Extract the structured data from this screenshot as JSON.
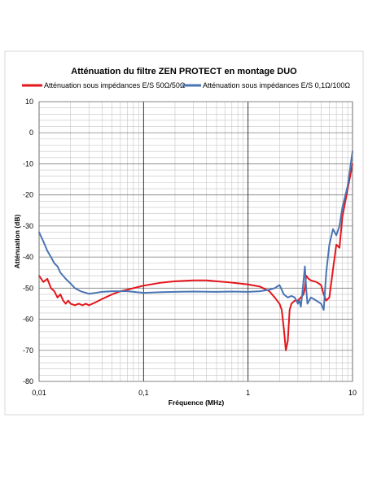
{
  "chart_data": {
    "type": "line",
    "title": "Atténuation du filtre ZEN PROTECT en montage DUO",
    "xlabel": "Fréquence (MHz)",
    "ylabel": "Atténuation (dB)",
    "x_scale": "log",
    "xlim": [
      0.01,
      10
    ],
    "ylim": [
      -80,
      10
    ],
    "x_ticks": [
      0.01,
      0.1,
      1,
      10
    ],
    "x_tick_labels": [
      "0,01",
      "0,1",
      "1",
      "10"
    ],
    "y_ticks": [
      10,
      0,
      -10,
      -20,
      -30,
      -40,
      -50,
      -60,
      -70,
      -80
    ],
    "y_tick_labels": [
      "10",
      "0",
      "-10",
      "-20",
      "-30",
      "-40",
      "-50",
      "-60",
      "-70",
      "-80"
    ],
    "grid": true,
    "legend_position": "top",
    "series": [
      {
        "name": "Atténuation sous impédances E/S 50Ω/50Ω",
        "color": "#e3161b",
        "x": [
          0.01,
          0.011,
          0.012,
          0.013,
          0.014,
          0.015,
          0.016,
          0.017,
          0.018,
          0.019,
          0.02,
          0.022,
          0.024,
          0.026,
          0.028,
          0.03,
          0.035,
          0.04,
          0.05,
          0.06,
          0.07,
          0.08,
          0.1,
          0.15,
          0.2,
          0.3,
          0.4,
          0.5,
          0.7,
          1.0,
          1.3,
          1.6,
          1.8,
          2.0,
          2.1,
          2.2,
          2.3,
          2.4,
          2.5,
          2.6,
          2.8,
          3.0,
          3.2,
          3.4,
          3.5,
          3.6,
          3.8,
          4.0,
          4.5,
          5.0,
          5.3,
          5.6,
          6.0,
          6.5,
          7.0,
          7.5,
          8.0,
          9.0,
          10.0
        ],
        "values": [
          -46,
          -48,
          -47,
          -50,
          -51,
          -53,
          -52,
          -54,
          -55,
          -54,
          -55,
          -55.5,
          -55,
          -55.5,
          -55,
          -55.5,
          -54.5,
          -53.5,
          -52,
          -51,
          -50.5,
          -50,
          -49.2,
          -48.2,
          -47.8,
          -47.5,
          -47.5,
          -47.8,
          -48.2,
          -48.8,
          -49.5,
          -51,
          -53,
          -55,
          -57,
          -63,
          -70,
          -67,
          -57,
          -55,
          -54,
          -54,
          -53,
          -52,
          -50,
          -46,
          -47,
          -47.5,
          -48,
          -49,
          -52,
          -54,
          -53,
          -44,
          -36,
          -37,
          -27,
          -18,
          -10
        ]
      },
      {
        "name": "Atténuation sous impédances E/S 0,1Ω/100Ω",
        "color": "#4a74b4",
        "x": [
          0.01,
          0.011,
          0.012,
          0.013,
          0.014,
          0.015,
          0.016,
          0.018,
          0.02,
          0.022,
          0.025,
          0.028,
          0.03,
          0.035,
          0.04,
          0.05,
          0.06,
          0.07,
          0.08,
          0.1,
          0.15,
          0.2,
          0.3,
          0.5,
          0.7,
          1.0,
          1.3,
          1.6,
          1.8,
          2.0,
          2.2,
          2.4,
          2.6,
          2.8,
          3.0,
          3.1,
          3.2,
          3.3,
          3.5,
          3.6,
          3.7,
          4.0,
          4.5,
          5.0,
          5.3,
          5.6,
          6.0,
          6.5,
          7.0,
          7.5,
          8.0,
          9.0,
          10.0
        ],
        "values": [
          -32,
          -35,
          -38,
          -40,
          -42,
          -43,
          -45,
          -47,
          -48.5,
          -50,
          -51,
          -51.5,
          -51.8,
          -51.5,
          -51.2,
          -51,
          -51,
          -51,
          -51.2,
          -51.5,
          -51.3,
          -51.2,
          -51.1,
          -51.2,
          -51.1,
          -51.2,
          -51,
          -50.5,
          -50,
          -49,
          -52,
          -53,
          -52.5,
          -53,
          -55,
          -54,
          -56,
          -52,
          -43,
          -50,
          -55,
          -53,
          -54,
          -55,
          -57,
          -45,
          -36,
          -31,
          -33,
          -30,
          -24,
          -17,
          -6
        ]
      }
    ]
  }
}
